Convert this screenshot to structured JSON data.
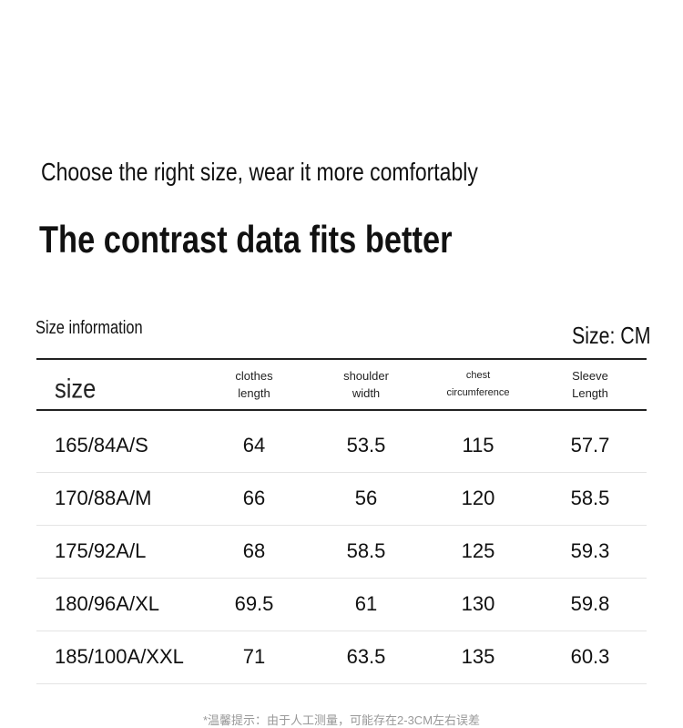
{
  "header": {
    "subtitle": "Choose the right size, wear it more comfortably",
    "title": "The contrast data fits better"
  },
  "table": {
    "caption": "Size information",
    "unit": "Size: CM",
    "columns": [
      [
        "size"
      ],
      [
        "clothes",
        "length"
      ],
      [
        "shoulder",
        "width"
      ],
      [
        "chest",
        "circumference"
      ],
      [
        "Sleeve",
        "Length"
      ]
    ],
    "rows": [
      [
        "165/84A/S",
        64,
        53.5,
        115,
        57.7
      ],
      [
        "170/88A/M",
        66,
        56,
        120,
        58.5
      ],
      [
        "175/92A/L",
        68,
        58.5,
        125,
        59.3
      ],
      [
        "180/96A/XL",
        69.5,
        61,
        130,
        59.8
      ],
      [
        "185/100A/XXL",
        71,
        63.5,
        135,
        60.3
      ]
    ]
  },
  "footer": {
    "note": "*温馨提示：由于人工测量，可能存在2-3CM左右误差"
  }
}
